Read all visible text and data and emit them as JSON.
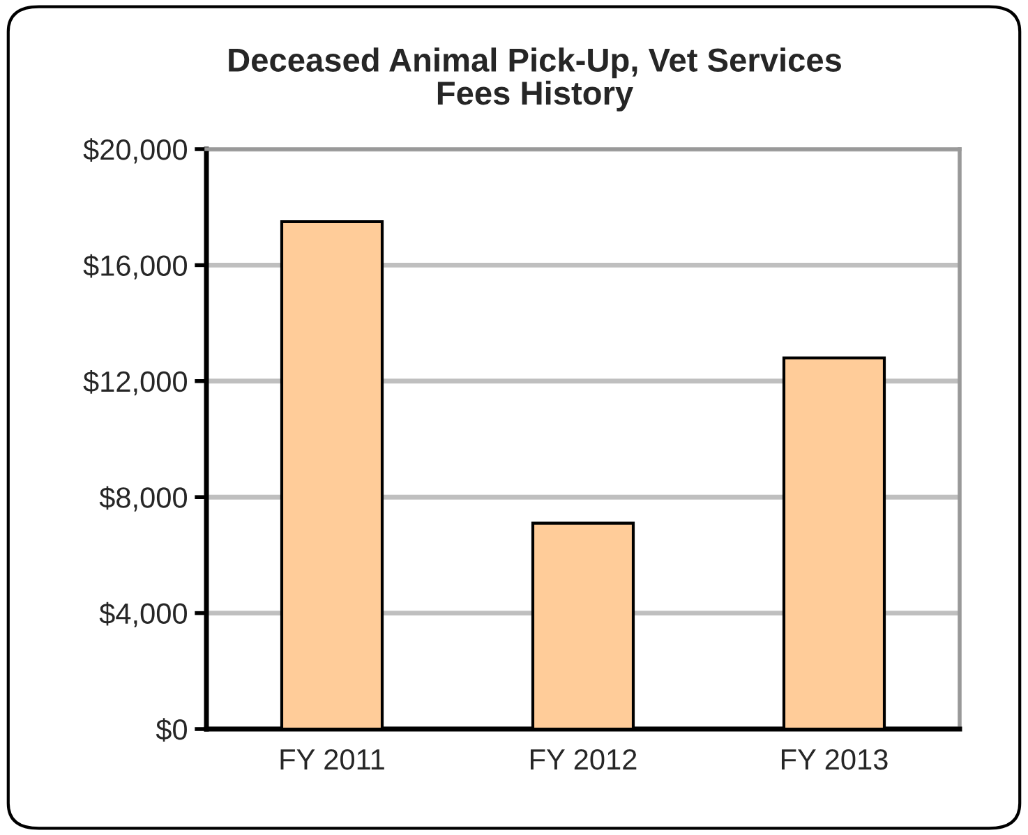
{
  "chart_data": {
    "type": "bar",
    "title": "Deceased Animal Pick-Up, Vet Services\nFees History",
    "categories": [
      "FY 2011",
      "FY 2012",
      "FY 2013"
    ],
    "values": [
      17500,
      7100,
      12800
    ],
    "color": "#ffcc99",
    "ylim": [
      0,
      20000
    ],
    "yticks": [
      {
        "value": 0,
        "label": "$0"
      },
      {
        "value": 4000,
        "label": "$4,000"
      },
      {
        "value": 8000,
        "label": "$8,000"
      },
      {
        "value": 12000,
        "label": "$12,000"
      },
      {
        "value": 16000,
        "label": "$16,000"
      },
      {
        "value": 20000,
        "label": "$20,000"
      }
    ],
    "grid": "y"
  }
}
